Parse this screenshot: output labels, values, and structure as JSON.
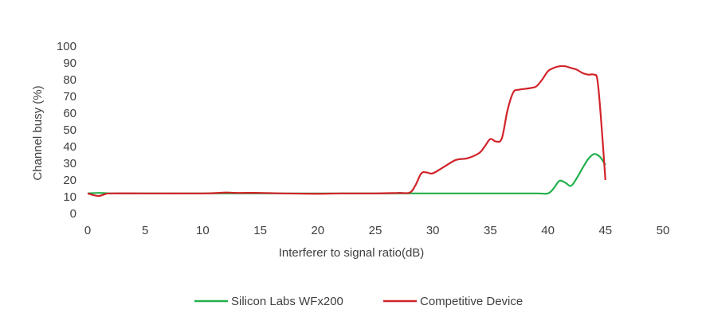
{
  "chart_data": {
    "type": "line",
    "title": "",
    "xlabel": "Interferer to signal ratio(dB)",
    "ylabel": "Channel busy (%)",
    "xlim": [
      0,
      50
    ],
    "ylim": [
      0,
      100
    ],
    "xticks": [
      0,
      5,
      10,
      15,
      20,
      25,
      30,
      35,
      40,
      45,
      50
    ],
    "yticks": [
      0,
      10,
      20,
      30,
      40,
      50,
      60,
      70,
      80,
      90,
      100
    ],
    "grid": false,
    "legend_position": "bottom",
    "series": [
      {
        "name": "Silicon Labs WFx200",
        "color": "#22b04c",
        "x": [
          0,
          1,
          2,
          5,
          10,
          15,
          20,
          25,
          28,
          30,
          35,
          39,
          40,
          40.5,
          41,
          41.5,
          42,
          42.5,
          43,
          43.5,
          44,
          44.5,
          45
        ],
        "y": [
          12,
          12.3,
          12,
          12,
          12,
          12,
          12,
          12,
          12,
          12,
          12,
          12,
          12,
          15,
          19.5,
          18.5,
          16.5,
          21,
          27,
          32.5,
          35.5,
          34,
          29
        ]
      },
      {
        "name": "Competitive Device",
        "color": "#d2232a",
        "x": [
          0,
          0.5,
          1,
          1.5,
          2,
          5,
          10,
          12,
          13,
          15,
          17,
          20,
          22,
          25,
          27,
          28,
          28.5,
          29,
          29.5,
          30,
          31,
          32,
          33,
          34,
          34.5,
          35,
          35.5,
          36,
          36.5,
          37,
          37.5,
          38,
          38.5,
          39,
          39.5,
          40,
          40.5,
          41,
          41.5,
          42,
          42.5,
          43,
          43.5,
          44,
          44.3,
          44.6,
          45
        ],
        "y": [
          12,
          11,
          10.5,
          11.5,
          12,
          12,
          12,
          12.5,
          12.3,
          12.3,
          12,
          11.8,
          12,
          12,
          12.3,
          12.5,
          17,
          24,
          24.5,
          24,
          28,
          32,
          33,
          36,
          40,
          44.5,
          43,
          45,
          62,
          72.5,
          74,
          74.5,
          75,
          76,
          80,
          85,
          87,
          88,
          88,
          87,
          86,
          84,
          83,
          83,
          80,
          58,
          20
        ]
      }
    ]
  }
}
